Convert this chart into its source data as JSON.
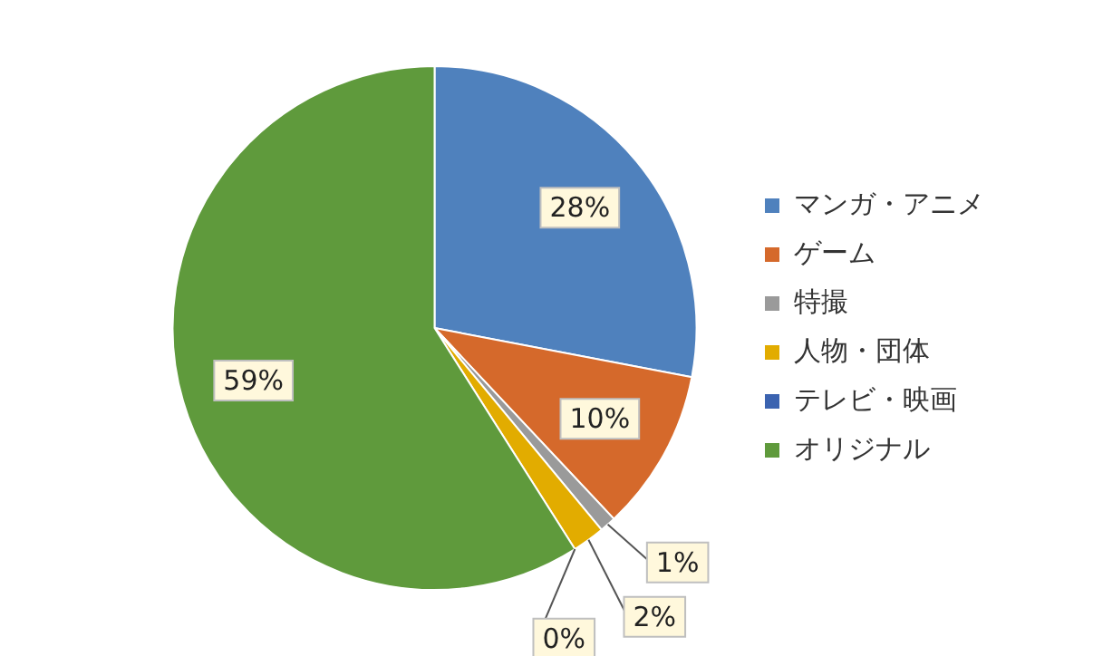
{
  "chart_data": {
    "type": "pie",
    "categories": [
      "マンガ・アニメ",
      "ゲーム",
      "特撮",
      "人物・団体",
      "テレビ・映画",
      "オリジナル"
    ],
    "values": [
      28,
      10,
      1,
      2,
      0,
      59
    ],
    "colors": [
      "#4f81bd",
      "#d5692b",
      "#9a9a9a",
      "#e2ac00",
      "#3b63b0",
      "#5f9a3c"
    ],
    "value_labels": [
      "28%",
      "10%",
      "1%",
      "2%",
      "0%",
      "59%"
    ],
    "legend": "right"
  }
}
